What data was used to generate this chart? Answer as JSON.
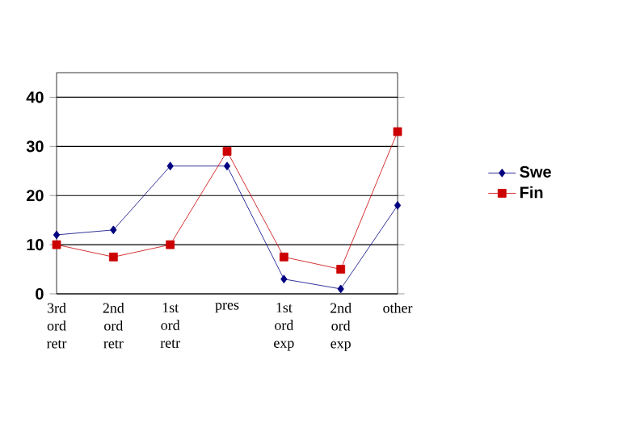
{
  "chart_data": {
    "type": "line",
    "categories": [
      "3rd ord retr",
      "2nd ord retr",
      "1st ord retr",
      "pres",
      "1st ord exp",
      "2nd ord exp",
      "other"
    ],
    "series": [
      {
        "name": "Swe",
        "color": "#000080",
        "marker": "diamond",
        "values": [
          12,
          13,
          26,
          26,
          3,
          1,
          18
        ]
      },
      {
        "name": "Fin",
        "color": "#cc0000",
        "marker": "square",
        "values": [
          10,
          7.5,
          10,
          29,
          7.5,
          5,
          33
        ]
      }
    ],
    "ylim": [
      0,
      45
    ],
    "yticks": [
      0,
      10,
      20,
      30,
      40
    ],
    "grid": "y",
    "legend": "right"
  }
}
